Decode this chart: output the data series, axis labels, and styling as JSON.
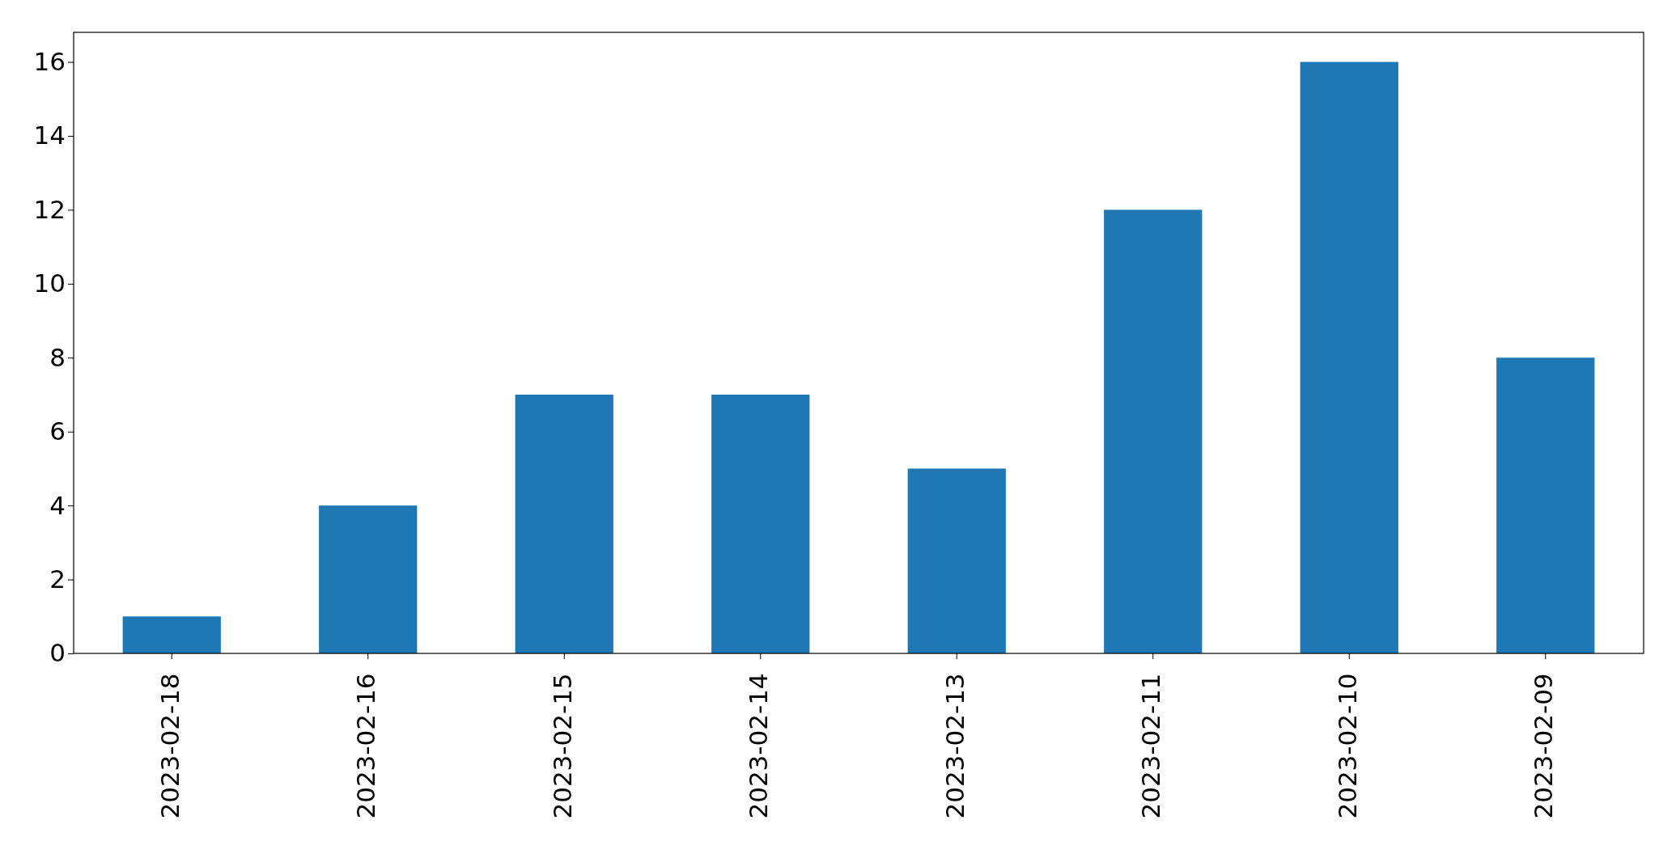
{
  "chart_data": {
    "type": "bar",
    "categories": [
      "2023-02-18",
      "2023-02-16",
      "2023-02-15",
      "2023-02-14",
      "2023-02-13",
      "2023-02-11",
      "2023-02-10",
      "2023-02-09"
    ],
    "values": [
      1,
      4,
      7,
      7,
      5,
      12,
      16,
      8
    ],
    "color": "#1f77b4",
    "ylim": [
      0,
      16.8
    ],
    "yticks": [
      0,
      2,
      4,
      6,
      8,
      10,
      12,
      14,
      16
    ],
    "grid": false
  }
}
